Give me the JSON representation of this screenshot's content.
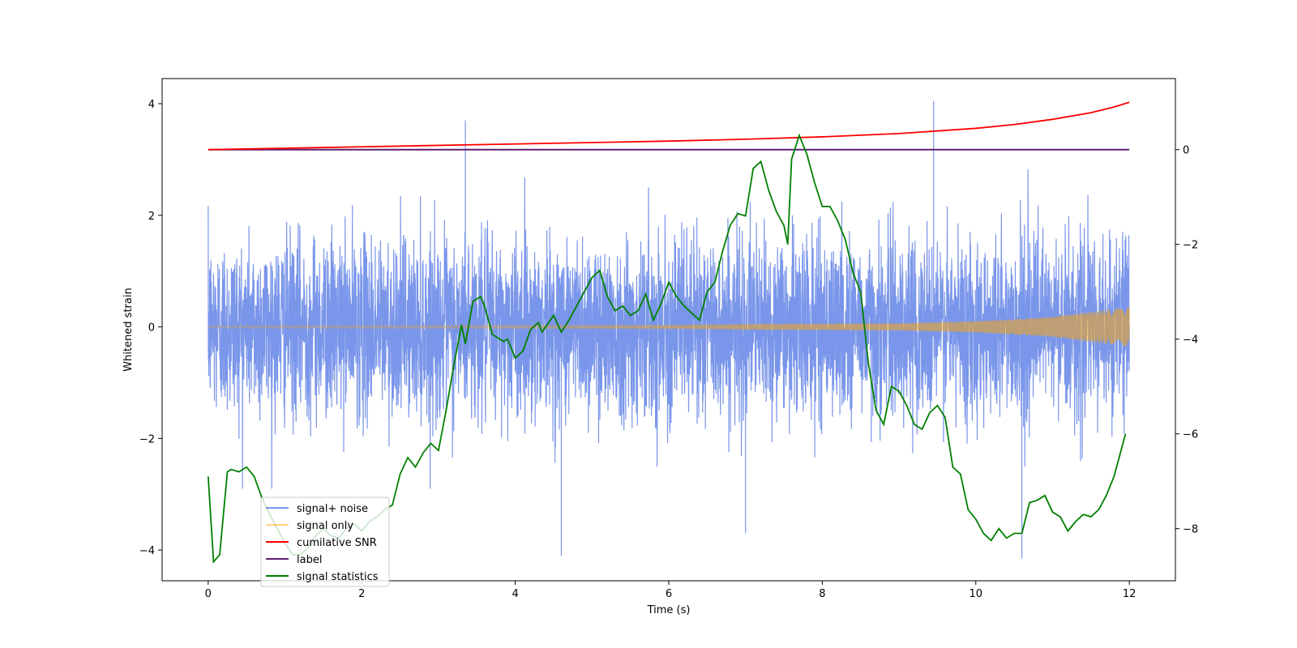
{
  "chart_data": {
    "type": "line",
    "title": "",
    "xlabel": "Time (s)",
    "ylabel": "Whitened strain",
    "ylabel_right": "",
    "xlim": [
      -0.6,
      12.6
    ],
    "ylim": [
      -4.55,
      4.45
    ],
    "ylim_right": [
      -9.1,
      1.5
    ],
    "x_ticks": [
      0,
      2,
      4,
      6,
      8,
      10,
      12
    ],
    "y_ticks": [
      -4,
      -2,
      0,
      2,
      4
    ],
    "y_ticks_right": [
      -8,
      -6,
      -4,
      -2,
      0
    ],
    "legend_position": "lower-left",
    "series": [
      {
        "name": "signal+ noise",
        "axis": "left",
        "color": "#4169e1",
        "style": "dense noise, amplitude approx ±2.5 with spikes to ±4",
        "x_range": [
          0,
          12
        ],
        "notable_peaks": [
          [
            3.35,
            3.7
          ],
          [
            4.6,
            -4.1
          ],
          [
            9.45,
            4.05
          ],
          [
            10.6,
            -4.15
          ],
          [
            7.0,
            -3.7
          ]
        ]
      },
      {
        "name": "signal only",
        "axis": "left",
        "color": "#ffa500",
        "style": "chirp oscillation with growing amplitude",
        "x_range": [
          0,
          12
        ],
        "amplitude": [
          [
            0,
            0.02
          ],
          [
            6,
            0.03
          ],
          [
            9,
            0.06
          ],
          [
            10,
            0.1
          ],
          [
            11,
            0.18
          ],
          [
            12,
            0.36
          ]
        ]
      },
      {
        "name": "cumilative SNR",
        "axis": "right",
        "color": "#ff0000",
        "x": [
          0,
          2,
          4,
          6,
          7,
          8,
          9,
          10,
          10.5,
          11,
          11.5,
          11.8,
          12
        ],
        "y": [
          0.0,
          0.06,
          0.12,
          0.18,
          0.22,
          0.27,
          0.34,
          0.45,
          0.53,
          0.64,
          0.78,
          0.9,
          1.0
        ]
      },
      {
        "name": "label",
        "axis": "right",
        "color": "#5f1f6f",
        "x": [
          0,
          12
        ],
        "y": [
          0,
          0
        ]
      },
      {
        "name": "signal statistics",
        "axis": "right",
        "color": "#008000",
        "x": [
          0.0,
          0.07,
          0.15,
          0.25,
          0.3,
          0.4,
          0.5,
          0.6,
          0.7,
          0.8,
          0.9,
          1.0,
          1.1,
          1.2,
          1.3,
          1.4,
          1.5,
          1.6,
          1.7,
          1.8,
          1.9,
          2.0,
          2.1,
          2.2,
          2.3,
          2.4,
          2.5,
          2.6,
          2.7,
          2.8,
          2.9,
          3.0,
          3.1,
          3.2,
          3.3,
          3.35,
          3.45,
          3.5,
          3.55,
          3.6,
          3.7,
          3.75,
          3.85,
          3.9,
          4.0,
          4.1,
          4.2,
          4.3,
          4.35,
          4.5,
          4.6,
          4.7,
          4.8,
          4.9,
          4.95,
          5.0,
          5.1,
          5.2,
          5.3,
          5.4,
          5.5,
          5.6,
          5.7,
          5.8,
          5.9,
          6.0,
          6.1,
          6.2,
          6.3,
          6.4,
          6.5,
          6.6,
          6.7,
          6.8,
          6.9,
          7.0,
          7.1,
          7.2,
          7.3,
          7.4,
          7.5,
          7.55,
          7.6,
          7.7,
          7.8,
          7.85,
          7.9,
          8.0,
          8.1,
          8.2,
          8.3,
          8.4,
          8.5,
          8.6,
          8.7,
          8.8,
          8.9,
          9.0,
          9.1,
          9.2,
          9.3,
          9.4,
          9.5,
          9.6,
          9.7,
          9.8,
          9.9,
          10.0,
          10.1,
          10.2,
          10.3,
          10.4,
          10.5,
          10.6,
          10.7,
          10.8,
          10.9,
          11.0,
          11.1,
          11.2,
          11.3,
          11.4,
          11.5,
          11.6,
          11.7,
          11.8,
          11.9,
          11.95
        ],
        "y": [
          -6.9,
          -8.7,
          -8.55,
          -6.8,
          -6.75,
          -6.8,
          -6.7,
          -6.9,
          -7.35,
          -7.7,
          -8.0,
          -8.3,
          -8.55,
          -8.55,
          -8.4,
          -8.15,
          -8.0,
          -8.15,
          -8.2,
          -8.0,
          -7.9,
          -8.05,
          -7.85,
          -7.75,
          -7.6,
          -7.5,
          -6.85,
          -6.5,
          -6.7,
          -6.4,
          -6.2,
          -6.35,
          -5.5,
          -4.55,
          -3.7,
          -4.1,
          -3.2,
          -3.15,
          -3.1,
          -3.3,
          -3.9,
          -3.95,
          -4.05,
          -4.0,
          -4.4,
          -4.25,
          -3.8,
          -3.65,
          -3.85,
          -3.5,
          -3.85,
          -3.6,
          -3.3,
          -3.0,
          -2.85,
          -2.7,
          -2.55,
          -3.1,
          -3.4,
          -3.3,
          -3.5,
          -3.4,
          -3.05,
          -3.6,
          -3.25,
          -2.8,
          -3.1,
          -3.3,
          -3.45,
          -3.6,
          -3.0,
          -2.8,
          -2.15,
          -1.6,
          -1.35,
          -1.4,
          -0.4,
          -0.25,
          -0.85,
          -1.3,
          -1.6,
          -2.0,
          -0.2,
          0.3,
          -0.1,
          -0.4,
          -0.7,
          -1.2,
          -1.2,
          -1.5,
          -1.9,
          -2.6,
          -3.0,
          -4.5,
          -5.5,
          -5.8,
          -5.0,
          -5.1,
          -5.4,
          -5.8,
          -5.9,
          -5.55,
          -5.4,
          -5.65,
          -6.7,
          -6.85,
          -7.6,
          -7.8,
          -8.1,
          -8.25,
          -8.0,
          -8.2,
          -8.1,
          -8.1,
          -7.45,
          -7.4,
          -7.3,
          -7.65,
          -7.75,
          -8.05,
          -7.85,
          -7.7,
          -7.75,
          -7.6,
          -7.3,
          -6.9,
          -6.3,
          -6.0
        ],
        "y_note": "right-axis values"
      }
    ]
  }
}
